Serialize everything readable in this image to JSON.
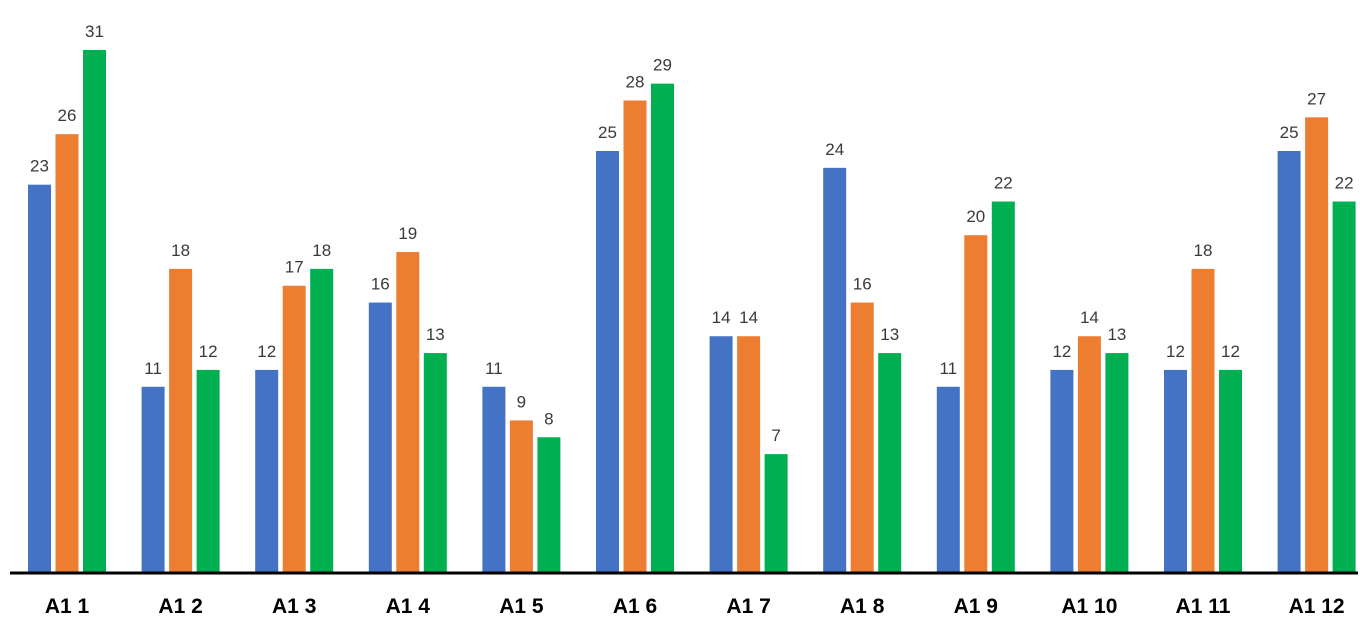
{
  "chart_data": {
    "type": "bar",
    "title": "",
    "xlabel": "",
    "ylabel": "",
    "ylim": [
      0,
      31.5
    ],
    "grid": false,
    "legend": "none",
    "categories": [
      "A1  1",
      "A1  2",
      "A1  3",
      "A1  4",
      "A1  5",
      "A1  6",
      "A1  7",
      "A1  8",
      "A1  9",
      "A1  10",
      "A1  11",
      "A1  12"
    ],
    "series": [
      {
        "color": "#4472C4",
        "values": [
          23,
          11,
          12,
          16,
          11,
          25,
          14,
          24,
          11,
          12,
          12,
          25
        ]
      },
      {
        "color": "#ED7D31",
        "values": [
          26,
          18,
          17,
          19,
          9,
          28,
          14,
          16,
          20,
          14,
          18,
          27
        ]
      },
      {
        "color": "#00B050",
        "values": [
          31,
          12,
          18,
          13,
          8,
          29,
          7,
          13,
          22,
          13,
          12,
          22
        ]
      }
    ]
  }
}
